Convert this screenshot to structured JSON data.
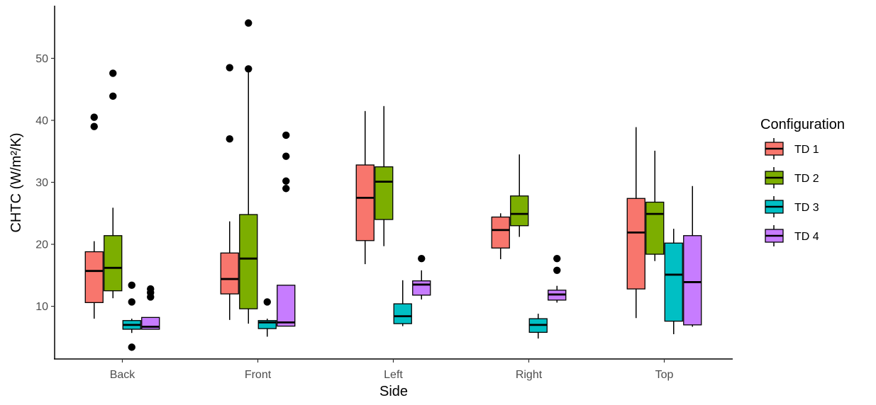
{
  "chart_data": {
    "type": "boxplot",
    "xlabel": "Side",
    "ylabel": "CHTC (W/m²/K)",
    "categories": [
      "Back",
      "Front",
      "Left",
      "Right",
      "Top"
    ],
    "yticks": [
      10,
      20,
      30,
      40,
      50
    ],
    "ylim": [
      1.5,
      58.5
    ],
    "grid": false,
    "legend": {
      "title": "Configuration",
      "position": "right"
    },
    "series": [
      {
        "name": "TD 1",
        "color": "#F8766D",
        "boxes": [
          {
            "category": "Back",
            "lower": 8.0,
            "q1": 10.6,
            "median": 15.7,
            "q3": 18.8,
            "upper": 20.5,
            "outliers": [
              39.0,
              40.5
            ]
          },
          {
            "category": "Front",
            "lower": 7.8,
            "q1": 12.0,
            "median": 14.4,
            "q3": 18.6,
            "upper": 23.7,
            "outliers": [
              37.0,
              48.5
            ]
          },
          {
            "category": "Left",
            "lower": 16.8,
            "q1": 20.6,
            "median": 27.5,
            "q3": 32.8,
            "upper": 41.5,
            "outliers": []
          },
          {
            "category": "Right",
            "lower": 17.6,
            "q1": 19.4,
            "median": 22.3,
            "q3": 24.4,
            "upper": 25.0,
            "outliers": []
          },
          {
            "category": "Top",
            "lower": 8.1,
            "q1": 12.8,
            "median": 21.9,
            "q3": 27.4,
            "upper": 38.9,
            "outliers": []
          }
        ]
      },
      {
        "name": "TD 2",
        "color": "#7CAE00",
        "boxes": [
          {
            "category": "Back",
            "lower": 11.3,
            "q1": 12.5,
            "median": 16.2,
            "q3": 21.4,
            "upper": 25.9,
            "outliers": [
              43.9,
              47.6
            ]
          },
          {
            "category": "Front",
            "lower": 7.2,
            "q1": 9.6,
            "median": 17.7,
            "q3": 24.8,
            "upper": 47.9,
            "outliers": [
              48.3,
              55.7
            ]
          },
          {
            "category": "Left",
            "lower": 19.7,
            "q1": 24.0,
            "median": 30.1,
            "q3": 32.5,
            "upper": 42.3,
            "outliers": []
          },
          {
            "category": "Right",
            "lower": 21.2,
            "q1": 23.0,
            "median": 24.9,
            "q3": 27.8,
            "upper": 34.5,
            "outliers": []
          },
          {
            "category": "Top",
            "lower": 17.3,
            "q1": 18.4,
            "median": 24.9,
            "q3": 26.8,
            "upper": 35.1,
            "outliers": []
          }
        ]
      },
      {
        "name": "TD 3",
        "color": "#00BFC4",
        "boxes": [
          {
            "category": "Back",
            "lower": 5.7,
            "q1": 6.3,
            "median": 7.0,
            "q3": 7.7,
            "upper": 8.0,
            "outliers": [
              3.4,
              10.7,
              13.4
            ]
          },
          {
            "category": "Front",
            "lower": 5.1,
            "q1": 6.4,
            "median": 7.4,
            "q3": 7.7,
            "upper": 8.0,
            "outliers": [
              10.7
            ]
          },
          {
            "category": "Left",
            "lower": 6.8,
            "q1": 7.2,
            "median": 8.4,
            "q3": 10.4,
            "upper": 14.2,
            "outliers": []
          },
          {
            "category": "Right",
            "lower": 4.8,
            "q1": 5.8,
            "median": 7.0,
            "q3": 8.0,
            "upper": 8.8,
            "outliers": []
          },
          {
            "category": "Top",
            "lower": 5.5,
            "q1": 7.6,
            "median": 15.1,
            "q3": 20.2,
            "upper": 22.5,
            "outliers": []
          }
        ]
      },
      {
        "name": "TD 4",
        "color": "#C77CFF",
        "boxes": [
          {
            "category": "Back",
            "lower": 6.3,
            "q1": 6.3,
            "median": 6.7,
            "q3": 8.2,
            "upper": 8.2,
            "outliers": [
              11.5,
              12.2,
              12.8
            ]
          },
          {
            "category": "Front",
            "lower": 6.8,
            "q1": 6.8,
            "median": 7.4,
            "q3": 13.4,
            "upper": 13.4,
            "outliers": [
              29.0,
              30.2,
              34.2,
              37.6
            ]
          },
          {
            "category": "Left",
            "lower": 11.1,
            "q1": 11.8,
            "median": 13.5,
            "q3": 14.1,
            "upper": 15.8,
            "outliers": [
              17.7
            ]
          },
          {
            "category": "Right",
            "lower": 10.6,
            "q1": 11.0,
            "median": 11.9,
            "q3": 12.6,
            "upper": 13.3,
            "outliers": [
              15.8,
              17.7
            ]
          },
          {
            "category": "Top",
            "lower": 6.7,
            "q1": 7.0,
            "median": 13.9,
            "q3": 21.4,
            "upper": 29.4,
            "outliers": []
          }
        ]
      }
    ]
  }
}
